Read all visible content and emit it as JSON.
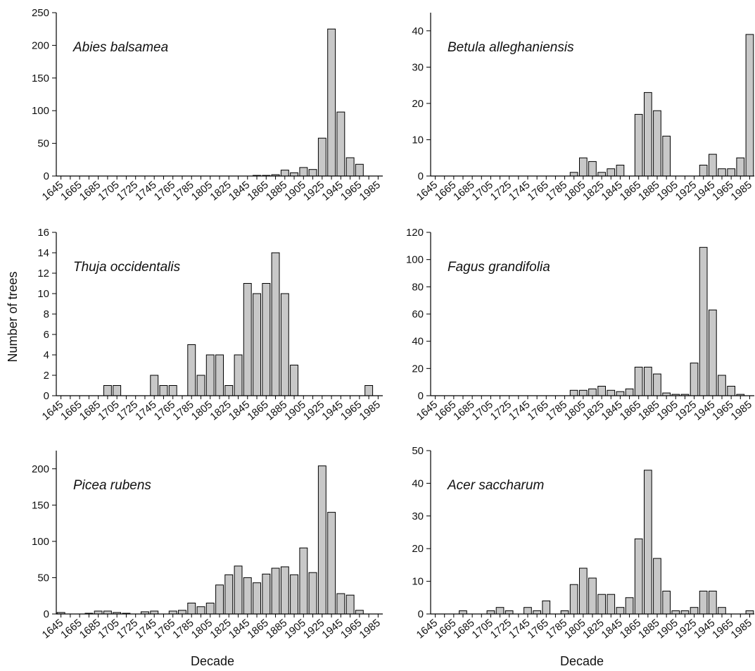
{
  "figure": {
    "ylabel": "Number of trees",
    "xlabel_left": "Decade",
    "xlabel_right": "Decade"
  },
  "chart_data": [
    {
      "type": "bar",
      "title": "Abies balsamea",
      "xlabel": "Decade",
      "ylabel": "Number of trees",
      "x_ticks": [
        "1645",
        "1665",
        "1685",
        "1705",
        "1725",
        "1745",
        "1765",
        "1785",
        "1805",
        "1825",
        "1845",
        "1865",
        "1885",
        "1905",
        "1925",
        "1945",
        "1965",
        "1985"
      ],
      "ylim": [
        0,
        250
      ],
      "y_ticks": [
        0,
        50,
        100,
        150,
        200,
        250
      ],
      "bars": [
        {
          "decade": 1855,
          "value": 1
        },
        {
          "decade": 1865,
          "value": 1
        },
        {
          "decade": 1875,
          "value": 2
        },
        {
          "decade": 1885,
          "value": 9
        },
        {
          "decade": 1895,
          "value": 5
        },
        {
          "decade": 1905,
          "value": 13
        },
        {
          "decade": 1915,
          "value": 10
        },
        {
          "decade": 1925,
          "value": 58
        },
        {
          "decade": 1935,
          "value": 225
        },
        {
          "decade": 1945,
          "value": 98
        },
        {
          "decade": 1955,
          "value": 28
        },
        {
          "decade": 1965,
          "value": 18
        }
      ]
    },
    {
      "type": "bar",
      "title": "Betula alleghaniensis",
      "xlabel": "Decade",
      "ylabel": "Number of trees",
      "x_ticks": [
        "1645",
        "1665",
        "1685",
        "1705",
        "1725",
        "1745",
        "1765",
        "1785",
        "1805",
        "1825",
        "1845",
        "1865",
        "1885",
        "1905",
        "1925",
        "1945",
        "1965",
        "1985"
      ],
      "ylim": [
        0,
        45
      ],
      "y_ticks": [
        0,
        10,
        20,
        30,
        40
      ],
      "bars": [
        {
          "decade": 1795,
          "value": 1
        },
        {
          "decade": 1805,
          "value": 5
        },
        {
          "decade": 1815,
          "value": 4
        },
        {
          "decade": 1825,
          "value": 1
        },
        {
          "decade": 1835,
          "value": 2
        },
        {
          "decade": 1845,
          "value": 3
        },
        {
          "decade": 1865,
          "value": 17
        },
        {
          "decade": 1875,
          "value": 23
        },
        {
          "decade": 1885,
          "value": 18
        },
        {
          "decade": 1895,
          "value": 11
        },
        {
          "decade": 1935,
          "value": 3
        },
        {
          "decade": 1945,
          "value": 6
        },
        {
          "decade": 1955,
          "value": 2
        },
        {
          "decade": 1965,
          "value": 2
        },
        {
          "decade": 1975,
          "value": 5
        },
        {
          "decade": 1985,
          "value": 39
        }
      ]
    },
    {
      "type": "bar",
      "title": "Thuja occidentalis",
      "xlabel": "Decade",
      "ylabel": "Number of trees",
      "x_ticks": [
        "1645",
        "1665",
        "1685",
        "1705",
        "1725",
        "1745",
        "1765",
        "1785",
        "1805",
        "1825",
        "1845",
        "1865",
        "1885",
        "1905",
        "1925",
        "1945",
        "1965",
        "1985"
      ],
      "ylim": [
        0,
        16
      ],
      "y_ticks": [
        0,
        2,
        4,
        6,
        8,
        10,
        12,
        14,
        16
      ],
      "bars": [
        {
          "decade": 1695,
          "value": 1
        },
        {
          "decade": 1705,
          "value": 1
        },
        {
          "decade": 1745,
          "value": 2
        },
        {
          "decade": 1755,
          "value": 1
        },
        {
          "decade": 1765,
          "value": 1
        },
        {
          "decade": 1785,
          "value": 5
        },
        {
          "decade": 1795,
          "value": 2
        },
        {
          "decade": 1805,
          "value": 4
        },
        {
          "decade": 1815,
          "value": 4
        },
        {
          "decade": 1825,
          "value": 1
        },
        {
          "decade": 1835,
          "value": 4
        },
        {
          "decade": 1845,
          "value": 11
        },
        {
          "decade": 1855,
          "value": 10
        },
        {
          "decade": 1865,
          "value": 11
        },
        {
          "decade": 1875,
          "value": 14
        },
        {
          "decade": 1885,
          "value": 10
        },
        {
          "decade": 1895,
          "value": 3
        },
        {
          "decade": 1975,
          "value": 1
        }
      ]
    },
    {
      "type": "bar",
      "title": "Fagus grandifolia",
      "xlabel": "Decade",
      "ylabel": "Number of trees",
      "x_ticks": [
        "1645",
        "1665",
        "1685",
        "1705",
        "1725",
        "1745",
        "1765",
        "1785",
        "1805",
        "1825",
        "1845",
        "1865",
        "1885",
        "1905",
        "1925",
        "1945",
        "1965",
        "1985"
      ],
      "ylim": [
        0,
        120
      ],
      "y_ticks": [
        0,
        20,
        40,
        60,
        80,
        100,
        120
      ],
      "bars": [
        {
          "decade": 1795,
          "value": 4
        },
        {
          "decade": 1805,
          "value": 4
        },
        {
          "decade": 1815,
          "value": 5
        },
        {
          "decade": 1825,
          "value": 7
        },
        {
          "decade": 1835,
          "value": 4
        },
        {
          "decade": 1845,
          "value": 3
        },
        {
          "decade": 1855,
          "value": 5
        },
        {
          "decade": 1865,
          "value": 21
        },
        {
          "decade": 1875,
          "value": 21
        },
        {
          "decade": 1885,
          "value": 16
        },
        {
          "decade": 1895,
          "value": 2
        },
        {
          "decade": 1905,
          "value": 1
        },
        {
          "decade": 1915,
          "value": 1
        },
        {
          "decade": 1925,
          "value": 24
        },
        {
          "decade": 1935,
          "value": 109
        },
        {
          "decade": 1945,
          "value": 63
        },
        {
          "decade": 1955,
          "value": 15
        },
        {
          "decade": 1965,
          "value": 7
        },
        {
          "decade": 1975,
          "value": 1
        }
      ]
    },
    {
      "type": "bar",
      "title": "Picea rubens",
      "xlabel": "Decade",
      "ylabel": "Number of trees",
      "x_ticks": [
        "1645",
        "1665",
        "1685",
        "1705",
        "1725",
        "1745",
        "1765",
        "1785",
        "1805",
        "1825",
        "1845",
        "1865",
        "1885",
        "1905",
        "1925",
        "1945",
        "1965",
        "1985"
      ],
      "ylim": [
        0,
        225
      ],
      "y_ticks": [
        0,
        50,
        100,
        150,
        200
      ],
      "bars": [
        {
          "decade": 1645,
          "value": 2
        },
        {
          "decade": 1675,
          "value": 1
        },
        {
          "decade": 1685,
          "value": 4
        },
        {
          "decade": 1695,
          "value": 4
        },
        {
          "decade": 1705,
          "value": 2
        },
        {
          "decade": 1715,
          "value": 1
        },
        {
          "decade": 1735,
          "value": 3
        },
        {
          "decade": 1745,
          "value": 4
        },
        {
          "decade": 1765,
          "value": 4
        },
        {
          "decade": 1775,
          "value": 5
        },
        {
          "decade": 1785,
          "value": 15
        },
        {
          "decade": 1795,
          "value": 10
        },
        {
          "decade": 1805,
          "value": 15
        },
        {
          "decade": 1815,
          "value": 40
        },
        {
          "decade": 1825,
          "value": 54
        },
        {
          "decade": 1835,
          "value": 66
        },
        {
          "decade": 1845,
          "value": 50
        },
        {
          "decade": 1855,
          "value": 43
        },
        {
          "decade": 1865,
          "value": 55
        },
        {
          "decade": 1875,
          "value": 63
        },
        {
          "decade": 1885,
          "value": 65
        },
        {
          "decade": 1895,
          "value": 54
        },
        {
          "decade": 1905,
          "value": 91
        },
        {
          "decade": 1915,
          "value": 57
        },
        {
          "decade": 1925,
          "value": 204
        },
        {
          "decade": 1935,
          "value": 140
        },
        {
          "decade": 1945,
          "value": 28
        },
        {
          "decade": 1955,
          "value": 26
        },
        {
          "decade": 1965,
          "value": 5
        }
      ]
    },
    {
      "type": "bar",
      "title": "Acer saccharum",
      "xlabel": "Decade",
      "ylabel": "Number of trees",
      "x_ticks": [
        "1645",
        "1665",
        "1685",
        "1705",
        "1725",
        "1745",
        "1765",
        "1785",
        "1805",
        "1825",
        "1845",
        "1865",
        "1885",
        "1905",
        "1925",
        "1945",
        "1965",
        "1985"
      ],
      "ylim": [
        0,
        50
      ],
      "y_ticks": [
        0,
        10,
        20,
        30,
        40,
        50
      ],
      "bars": [
        {
          "decade": 1675,
          "value": 1
        },
        {
          "decade": 1705,
          "value": 1
        },
        {
          "decade": 1715,
          "value": 2
        },
        {
          "decade": 1725,
          "value": 1
        },
        {
          "decade": 1745,
          "value": 2
        },
        {
          "decade": 1755,
          "value": 1
        },
        {
          "decade": 1765,
          "value": 4
        },
        {
          "decade": 1785,
          "value": 1
        },
        {
          "decade": 1795,
          "value": 9
        },
        {
          "decade": 1805,
          "value": 14
        },
        {
          "decade": 1815,
          "value": 11
        },
        {
          "decade": 1825,
          "value": 6
        },
        {
          "decade": 1835,
          "value": 6
        },
        {
          "decade": 1845,
          "value": 2
        },
        {
          "decade": 1855,
          "value": 5
        },
        {
          "decade": 1865,
          "value": 23
        },
        {
          "decade": 1875,
          "value": 44
        },
        {
          "decade": 1885,
          "value": 17
        },
        {
          "decade": 1895,
          "value": 7
        },
        {
          "decade": 1905,
          "value": 1
        },
        {
          "decade": 1915,
          "value": 1
        },
        {
          "decade": 1925,
          "value": 2
        },
        {
          "decade": 1935,
          "value": 7
        },
        {
          "decade": 1945,
          "value": 7
        },
        {
          "decade": 1955,
          "value": 2
        },
        {
          "decade": 1985,
          "value": 1
        }
      ]
    }
  ]
}
